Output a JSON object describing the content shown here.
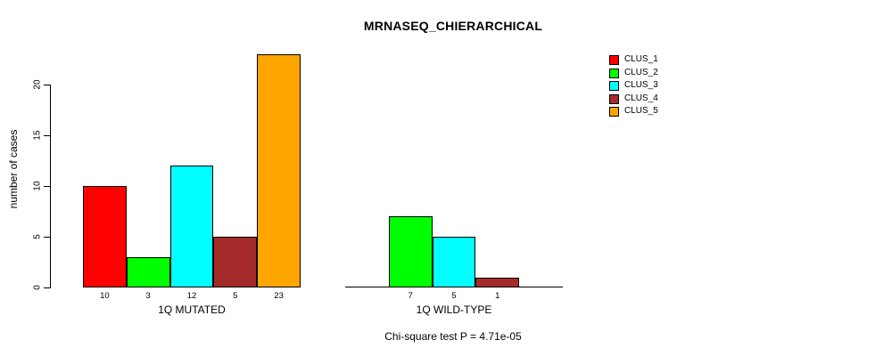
{
  "title": "MRNASEQ_CHIERARCHICAL",
  "footer": "Chi-square test P = 4.71e-05",
  "colors": {
    "clus_1": "#FF0000",
    "clus_2": "#00FF00",
    "clus_3": "#00FFFF",
    "clus_4": "#A52A2A",
    "clus_5": "#FFA500",
    "axis": "#000000",
    "background": "#FFFFFF"
  },
  "chart_data": {
    "type": "bar",
    "title": "MRNASEQ_CHIERARCHICAL",
    "xlabel": "",
    "ylabel": "number of cases",
    "ylim": [
      0,
      23
    ],
    "yticks": [
      0,
      5,
      10,
      15,
      20
    ],
    "grid": false,
    "legend_position": "right",
    "legend": [
      {
        "label": "CLUS_1",
        "color": "#FF0000"
      },
      {
        "label": "CLUS_2",
        "color": "#00FF00"
      },
      {
        "label": "CLUS_3",
        "color": "#00FFFF"
      },
      {
        "label": "CLUS_4",
        "color": "#A52A2A"
      },
      {
        "label": "CLUS_5",
        "color": "#FFA500"
      }
    ],
    "groups": [
      {
        "label": "1Q MUTATED",
        "bars": [
          {
            "cluster": "CLUS_1",
            "value": 10,
            "value_label": "10",
            "color": "#FF0000"
          },
          {
            "cluster": "CLUS_2",
            "value": 3,
            "value_label": "3",
            "color": "#00FF00"
          },
          {
            "cluster": "CLUS_3",
            "value": 12,
            "value_label": "12",
            "color": "#00FFFF"
          },
          {
            "cluster": "CLUS_4",
            "value": 5,
            "value_label": "5",
            "color": "#A52A2A"
          },
          {
            "cluster": "CLUS_5",
            "value": 23,
            "value_label": "23",
            "color": "#FFA500"
          }
        ]
      },
      {
        "label": "1Q WILD-TYPE",
        "bars": [
          {
            "cluster": "CLUS_1",
            "value": 0,
            "value_label": "",
            "color": "#FF0000"
          },
          {
            "cluster": "CLUS_2",
            "value": 7,
            "value_label": "7",
            "color": "#00FF00"
          },
          {
            "cluster": "CLUS_3",
            "value": 5,
            "value_label": "5",
            "color": "#00FFFF"
          },
          {
            "cluster": "CLUS_4",
            "value": 1,
            "value_label": "1",
            "color": "#A52A2A"
          },
          {
            "cluster": "CLUS_5",
            "value": 0,
            "value_label": "",
            "color": "#FFA500"
          }
        ]
      }
    ],
    "annotation": "Chi-square test P = 4.71e-05"
  }
}
